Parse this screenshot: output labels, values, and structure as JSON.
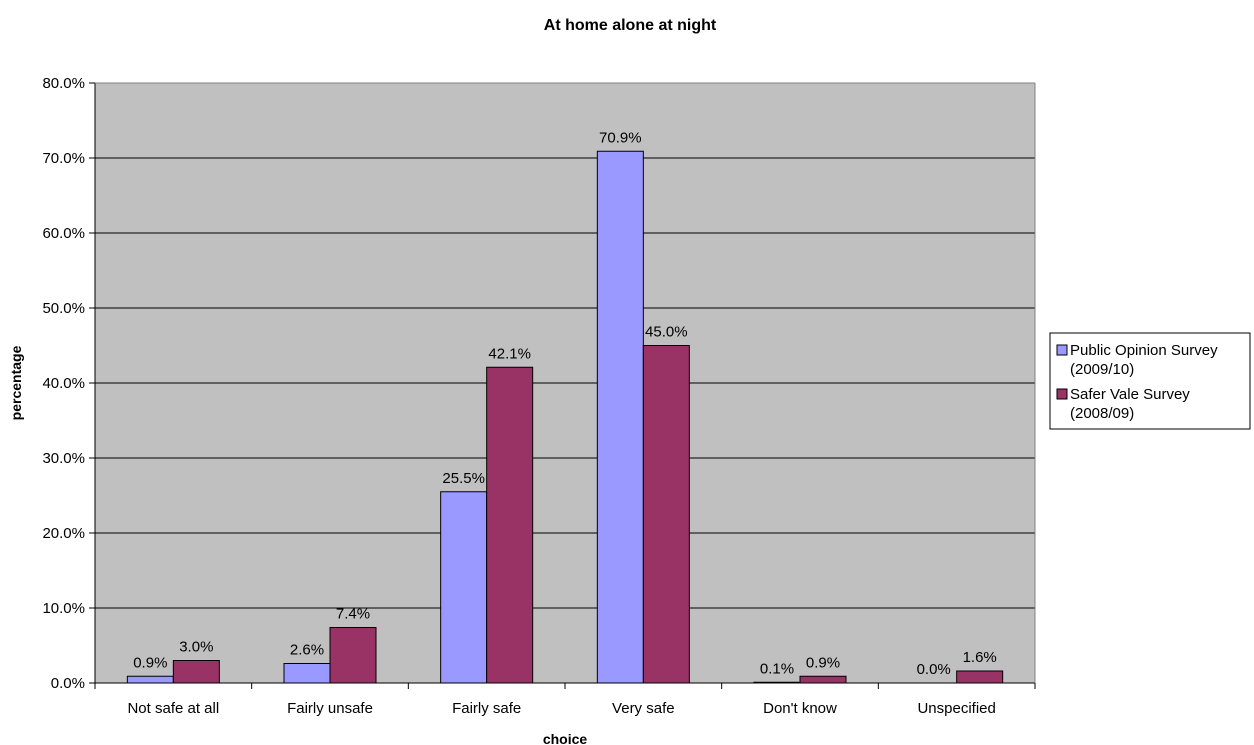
{
  "chart_data": {
    "type": "bar",
    "title": "At home alone at night",
    "xlabel": "choice",
    "ylabel": "percentage",
    "categories": [
      "Not safe at all",
      "Fairly unsafe",
      "Fairly safe",
      "Very safe",
      "Don't know",
      "Unspecified"
    ],
    "series": [
      {
        "name": "Public Opinion Survey (2009/10)",
        "legend_lines": [
          "Public Opinion Survey",
          "(2009/10)"
        ],
        "color": "#9999ff",
        "values": [
          0.9,
          2.6,
          25.5,
          70.9,
          0.1,
          0.0
        ],
        "labels": [
          "0.9%",
          "2.6%",
          "25.5%",
          "70.9%",
          "0.1%",
          "0.0%"
        ]
      },
      {
        "name": "Safer Vale Survey (2008/09)",
        "legend_lines": [
          "Safer Vale Survey",
          "(2008/09)"
        ],
        "color": "#993366",
        "values": [
          3.0,
          7.4,
          42.1,
          45.0,
          0.9,
          1.6
        ],
        "labels": [
          "3.0%",
          "7.4%",
          "42.1%",
          "45.0%",
          "0.9%",
          "1.6%"
        ]
      }
    ],
    "ylim": [
      0,
      80
    ],
    "yticks": [
      "0.0%",
      "10.0%",
      "20.0%",
      "30.0%",
      "40.0%",
      "50.0%",
      "60.0%",
      "70.0%",
      "80.0%"
    ],
    "grid": true,
    "plot_background": "#c0c0c0",
    "legend_position": "right"
  }
}
